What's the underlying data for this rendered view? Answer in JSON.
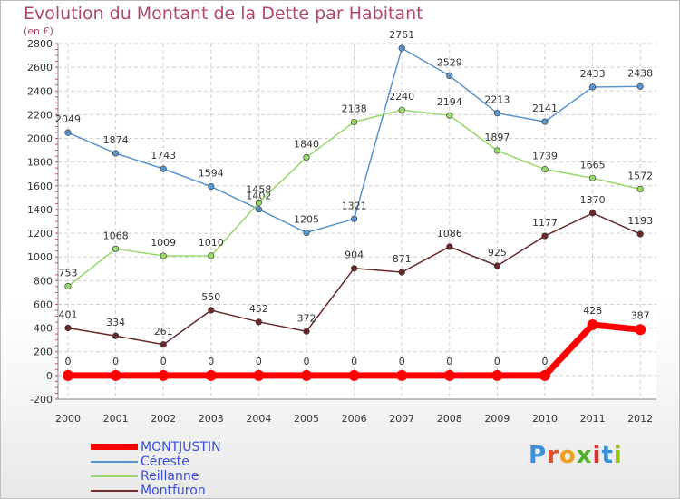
{
  "chart_data": {
    "type": "line",
    "title": "Evolution du Montant de la Dette par Habitant",
    "subtitle": "(en €)",
    "xlabel": "",
    "ylabel": "",
    "categories": [
      "2000",
      "2001",
      "2002",
      "2003",
      "2004",
      "2005",
      "2006",
      "2007",
      "2008",
      "2009",
      "2010",
      "2011",
      "2012"
    ],
    "ylim": [
      -200,
      2800
    ],
    "yticks": [
      -200,
      0,
      200,
      400,
      600,
      800,
      1000,
      1200,
      1400,
      1600,
      1800,
      2000,
      2200,
      2400,
      2600,
      2800
    ],
    "grid": true,
    "legend_position": "bottom-left",
    "series": [
      {
        "name": "MONTJUSTIN",
        "color": "#ff0000",
        "values": [
          0,
          0,
          0,
          0,
          0,
          0,
          0,
          0,
          0,
          0,
          0,
          428,
          387
        ]
      },
      {
        "name": "Céreste",
        "color": "#5a94cc",
        "values": [
          2049,
          1874,
          1743,
          1594,
          1402,
          1205,
          1321,
          2761,
          2529,
          2213,
          2141,
          2433,
          2438
        ]
      },
      {
        "name": "Reillanne",
        "color": "#98d86a",
        "values": [
          753,
          1068,
          1009,
          1010,
          1458,
          1840,
          2138,
          2240,
          2194,
          1897,
          1739,
          1665,
          1572
        ]
      },
      {
        "name": "Montfuron",
        "color": "#6b2a2a",
        "values": [
          401,
          334,
          261,
          550,
          452,
          372,
          904,
          871,
          1086,
          925,
          1177,
          1370,
          1193
        ]
      }
    ]
  },
  "branding": {
    "logo_letters": [
      "P",
      "r",
      "o",
      "x",
      "i",
      "t",
      "i"
    ]
  }
}
